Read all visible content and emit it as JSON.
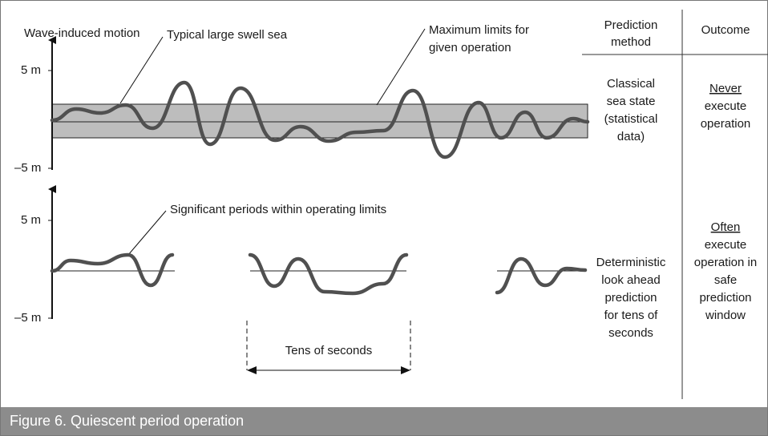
{
  "figure": {
    "axis_label": "Wave-induced motion",
    "top_axis": {
      "max": "5 m",
      "min": "–5 m"
    },
    "bottom_axis": {
      "max": "5 m",
      "min": "–5 m"
    },
    "annotations": {
      "swell": "Typical large swell sea",
      "limits": [
        "Maximum limits for",
        "given operation"
      ],
      "periods": "Significant periods within operating limits",
      "duration": "Tens of seconds"
    }
  },
  "table": {
    "headers": [
      [
        "Prediction",
        "method"
      ],
      [
        "Outcome"
      ]
    ],
    "rows": [
      {
        "method": [
          "Classical",
          "sea state",
          "(statistical",
          "data)"
        ],
        "emphasis": "Never",
        "outcome": [
          "execute",
          "operation"
        ]
      },
      {
        "method": [
          "Deterministic",
          "look ahead",
          "prediction",
          "for tens of",
          "seconds"
        ],
        "emphasis": "Often",
        "outcome": [
          "execute",
          "operation in",
          "safe",
          "prediction",
          "window"
        ]
      }
    ]
  },
  "caption": "Figure 6. Quiescent period operation"
}
